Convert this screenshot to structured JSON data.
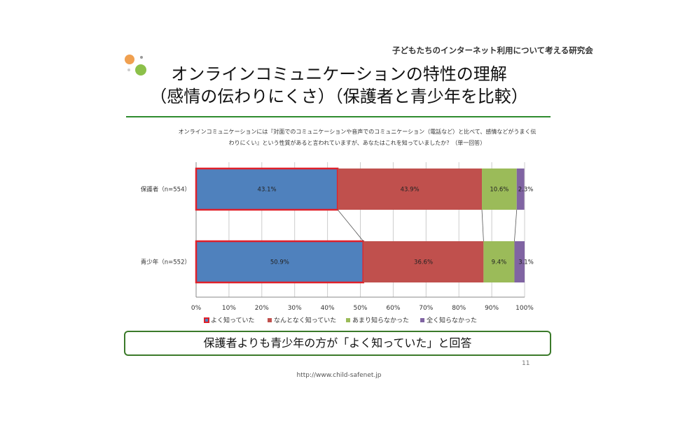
{
  "header": {
    "organization": "子どもたちのインターネット利用について考える研究会",
    "title_line1": "オンラインコミュニケーションの特性の理解",
    "title_line2": "（感情の伝わりにくさ）（保護者と青少年を比較）"
  },
  "question_line1": "オンラインコミュニケーションには『対面でのコミュニケーションや音声でのコミュニケーション（電話など）と比べて、感情などがうまく伝",
  "question_line2": "わりにくい』という性質があると言われていますが、あなたはこれを知っていましたか？（単一回答）",
  "conclusion": "保護者よりも青少年の方が「よく知っていた」と回答",
  "page_number": "11",
  "url": "http://www.child-safenet.jp",
  "chart_data": {
    "type": "bar",
    "orientation": "horizontal",
    "stacked": true,
    "categories": [
      "保護者（n=554）",
      "青少年（n=552）"
    ],
    "series": [
      {
        "name": "よく知っていた",
        "values": [
          43.1,
          50.9
        ],
        "color": "#4f81bd"
      },
      {
        "name": "なんとなく知っていた",
        "values": [
          43.9,
          36.6
        ],
        "color": "#c0504d"
      },
      {
        "name": "あまり知らなかった",
        "values": [
          10.6,
          9.4
        ],
        "color": "#9bbb59"
      },
      {
        "name": "全く知らなかった",
        "values": [
          2.3,
          3.1
        ],
        "color": "#8064a2"
      }
    ],
    "xlim": [
      0,
      100
    ],
    "xticks": [
      "0%",
      "10%",
      "20%",
      "30%",
      "40%",
      "50%",
      "60%",
      "70%",
      "80%",
      "90%",
      "100%"
    ],
    "grid": true,
    "legend": "bottom",
    "highlight_series": "よく知っていた",
    "highlight_color": "#e0202a"
  }
}
